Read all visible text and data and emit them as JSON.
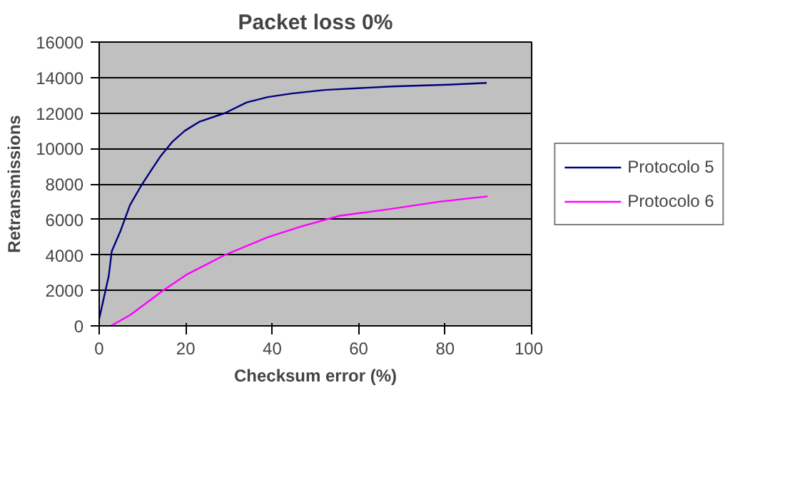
{
  "chart_data": {
    "type": "line",
    "title": "Packet loss 0%",
    "xlabel": "Checksum error (%)",
    "ylabel": "Retransmissions",
    "xlim": [
      0,
      100
    ],
    "xticks": [
      0,
      20,
      40,
      60,
      80,
      100
    ],
    "ylim": [
      0,
      16000
    ],
    "yticks": [
      0,
      2000,
      4000,
      6000,
      8000,
      10000,
      12000,
      14000,
      16000
    ],
    "grid": "y",
    "legend": "right",
    "marker": "none",
    "line_style": "solid",
    "series": [
      {
        "name": "Protocolo 5",
        "color": "#000080",
        "x": [
          0,
          2.2,
          2.9,
          5,
          7.1,
          9.7,
          12.1,
          14.3,
          17,
          19.8,
          23.1,
          29.1,
          34.1,
          39,
          44.5,
          52.2,
          67.6,
          80.8,
          89.6
        ],
        "values": [
          400,
          2800,
          4200,
          5400,
          6800,
          7900,
          8800,
          9600,
          10400,
          11000,
          11500,
          12000,
          12600,
          12900,
          13100,
          13300,
          13500,
          13600,
          13700
        ]
      },
      {
        "name": "Protocolo 6",
        "color": "#ff00ff",
        "x": [
          2.7,
          7.1,
          11.5,
          14.8,
          20.3,
          29.1,
          39,
          46.7,
          55.5,
          67.6,
          78.6,
          89.8
        ],
        "values": [
          0,
          600,
          1400,
          2000,
          2900,
          4000,
          5000,
          5600,
          6200,
          6600,
          7000,
          7300
        ]
      }
    ]
  }
}
